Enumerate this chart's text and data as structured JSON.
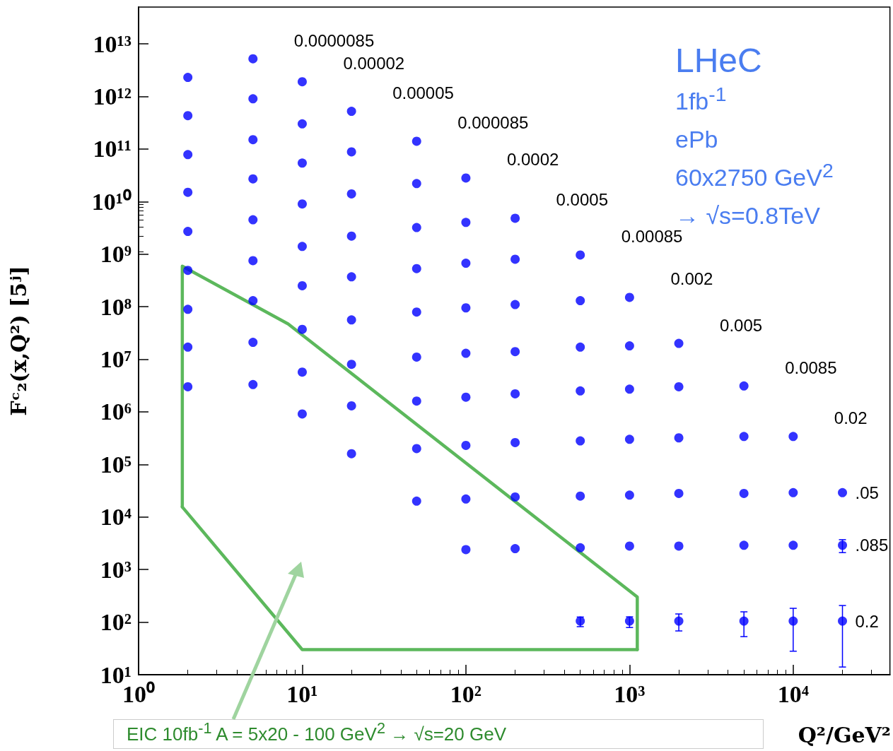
{
  "chart_data": {
    "type": "scatter",
    "xlabel": "Q²/GeV²",
    "ylabel": "Fᶜ₂(x,Q²) [5ʲ]",
    "log": "xy",
    "marker": "circle",
    "grid": false,
    "xlim": [
      1,
      39000
    ],
    "ylim": [
      10,
      50000000000000.0
    ],
    "xticks": [
      {
        "value": 1,
        "label": "10⁰"
      },
      {
        "value": 10,
        "label": "10¹"
      },
      {
        "value": 100,
        "label": "10²"
      },
      {
        "value": 1000,
        "label": "10³"
      },
      {
        "value": 10000,
        "label": "10⁴"
      }
    ],
    "yticks": [
      {
        "value": 10,
        "label": "10¹"
      },
      {
        "value": 100,
        "label": "10²"
      },
      {
        "value": 1000,
        "label": "10³"
      },
      {
        "value": 10000,
        "label": "10⁴"
      },
      {
        "value": 100000,
        "label": "10⁵"
      },
      {
        "value": 1000000,
        "label": "10⁶"
      },
      {
        "value": 10000000,
        "label": "10⁷"
      },
      {
        "value": 100000000,
        "label": "10⁸"
      },
      {
        "value": 1000000000,
        "label": "10⁹"
      },
      {
        "value": 10000000000,
        "label": "10¹⁰"
      },
      {
        "value": 100000000000,
        "label": "10¹¹"
      },
      {
        "value": 1000000000000,
        "label": "10¹²"
      },
      {
        "value": 10000000000000,
        "label": "10¹³"
      }
    ],
    "series": [
      {
        "name": "0.0000085",
        "color": "#0000ff",
        "x": [
          2,
          5
        ],
        "values": [
          2300000000000.0,
          5200000000000.0
        ]
      },
      {
        "name": "0.00002",
        "color": "#0000ff",
        "x": [
          2,
          5,
          10
        ],
        "values": [
          430000000000.0,
          900000000000.0,
          1900000000000.0
        ]
      },
      {
        "name": "0.00005",
        "color": "#0000ff",
        "x": [
          2,
          5,
          10,
          20
        ],
        "values": [
          78000000000.0,
          150000000000.0,
          300000000000.0,
          520000000000.0
        ]
      },
      {
        "name": "0.000085",
        "color": "#0000ff",
        "x": [
          2,
          5,
          10,
          20,
          50
        ],
        "values": [
          15000000000.0,
          27000000000.0,
          54000000000.0,
          88000000000.0,
          140000000000.0
        ]
      },
      {
        "name": "0.0002",
        "color": "#0000ff",
        "x": [
          2,
          5,
          10,
          20,
          50,
          100
        ],
        "values": [
          2700000000.0,
          4500000000.0,
          9000000000.0,
          14000000000.0,
          22000000000.0,
          28000000000.0
        ]
      },
      {
        "name": "0.0005",
        "color": "#0000ff",
        "x": [
          2,
          5,
          10,
          20,
          50,
          100,
          200
        ],
        "values": [
          490000000.0,
          750000000.0,
          1400000000.0,
          2200000000.0,
          3200000000.0,
          4000000000.0,
          4800000000.0
        ]
      },
      {
        "name": "0.00085",
        "color": "#0000ff",
        "x": [
          2,
          5,
          10,
          20,
          50,
          100,
          200,
          500
        ],
        "values": [
          89000000.0,
          130000000.0,
          250000000.0,
          370000000.0,
          530000000.0,
          670000000.0,
          800000000.0,
          960000000.0
        ]
      },
      {
        "name": "0.002",
        "color": "#0000ff",
        "x": [
          2,
          5,
          10,
          20,
          50,
          100,
          200,
          500,
          1000
        ],
        "values": [
          17000000.0,
          21000000.0,
          37000000.0,
          56000000.0,
          79000000.0,
          95000000.0,
          110000000.0,
          130000000.0,
          150000000.0
        ]
      },
      {
        "name": "0.005",
        "color": "#0000ff",
        "x": [
          2,
          5,
          10,
          20,
          50,
          100,
          200,
          500,
          1000,
          2000
        ],
        "values": [
          3000000.0,
          3300000.0,
          5700000.0,
          8000000.0,
          11000000.0,
          13000000.0,
          14000000.0,
          17000000.0,
          18000000.0,
          20000000.0
        ]
      },
      {
        "name": "0.0085",
        "color": "#0000ff",
        "x": [
          10,
          20,
          50,
          100,
          200,
          500,
          1000,
          2000,
          5000
        ],
        "values": [
          910000.0,
          1300000.0,
          1600000.0,
          1900000.0,
          2200000.0,
          2500000.0,
          2700000.0,
          3000000.0,
          3100000.0
        ]
      },
      {
        "name": "0.02",
        "color": "#0000ff",
        "x": [
          20,
          50,
          100,
          200,
          500,
          1000,
          2000,
          5000,
          10000
        ],
        "values": [
          160000.0,
          200000.0,
          230000.0,
          260000.0,
          280000.0,
          300000.0,
          320000.0,
          340000.0,
          340000.0
        ]
      },
      {
        "name": ".05",
        "color": "#0000ff",
        "x": [
          50,
          100,
          200,
          500,
          1000,
          2000,
          5000,
          10000,
          20000
        ],
        "values": [
          20000.0,
          22000.0,
          24000.0,
          25000.0,
          26000.0,
          28000.0,
          28000.0,
          29000.0,
          29000.0
        ]
      },
      {
        "name": ".085",
        "color": "#0000ff",
        "x": [
          100,
          200,
          500,
          1000,
          2000,
          5000,
          10000,
          20000
        ],
        "values": [
          2400,
          2500,
          2600,
          2800,
          2800,
          2900,
          2900,
          2900
        ],
        "errors": [
          null,
          null,
          null,
          null,
          null,
          null,
          null,
          [
            2100,
            3700
          ]
        ]
      },
      {
        "name": "0.2",
        "color": "#0000ff",
        "x": [
          500,
          1000,
          2000,
          5000,
          10000,
          20000
        ],
        "values": [
          105,
          105,
          105,
          105,
          105,
          105
        ],
        "errors": [
          [
            82,
            125
          ],
          [
            79,
            126
          ],
          [
            68,
            143
          ],
          [
            53,
            157
          ],
          [
            28,
            183
          ],
          [
            14,
            207
          ]
        ]
      },
      {
        "type": "line",
        "marker": "none",
        "line_style": "solid",
        "color": "#5cb85c",
        "x": [
          1.85,
          1.85,
          8.2,
          1115,
          1115
        ],
        "values": [
          15500,
          590000000.0,
          47000000.0,
          300,
          30
        ]
      },
      {
        "type": "line",
        "marker": "none",
        "line_style": "solid",
        "color": "#5cb85c",
        "x": [
          1.85,
          10,
          1115
        ],
        "values": [
          15500,
          30,
          30
        ]
      }
    ],
    "annotations": [
      "LHeC",
      "1fb$^{-1}$",
      "ePb",
      "60x2750 GeV$^{2}$",
      "→ √s=0.8TeV",
      "EIC 10fb$^{-1}$ A = 5x20 - 100 GeV$^{2}$ → √s=20 GeV"
    ]
  }
}
